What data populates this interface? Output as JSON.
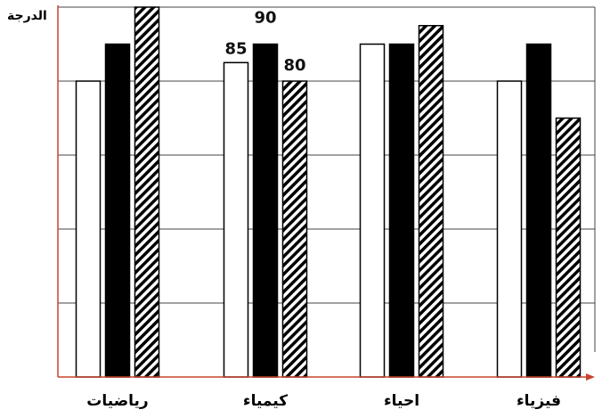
{
  "chart_data": {
    "type": "bar",
    "ylabel": "الدرجة",
    "xlabel": "",
    "ylim": [
      0,
      100
    ],
    "grid": true,
    "categories": [
      "رياضيات",
      "كيمياء",
      "احياء",
      "فيزياء"
    ],
    "series": [
      {
        "pattern": "white",
        "values": [
          80,
          85,
          90,
          80
        ]
      },
      {
        "pattern": "black",
        "values": [
          90,
          90,
          90,
          90
        ]
      },
      {
        "pattern": "hatched",
        "values": [
          100,
          80,
          95,
          70
        ]
      }
    ],
    "data_labels": {
      "category_index": 1,
      "values": [
        "85",
        "90",
        "80"
      ]
    },
    "colors": {
      "axis": "#c8432f",
      "grid": "#444444",
      "bar_outline": "#000000",
      "bar_fill_dark": "#000000",
      "bar_fill_light": "#ffffff"
    }
  }
}
